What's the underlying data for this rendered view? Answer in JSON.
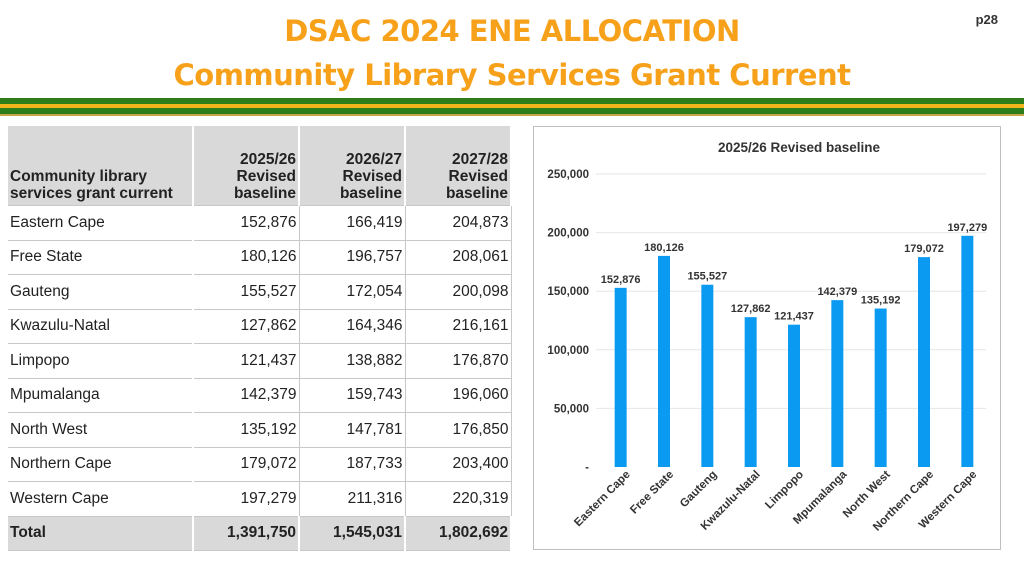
{
  "header": {
    "title_line1": "DSAC 2024 ENE ALLOCATION",
    "title_line2": "Community Library Services Grant Current",
    "page": "p28"
  },
  "table": {
    "columns": [
      "Community library services grant current",
      "2025/26 Revised baseline",
      "2026/27 Revised baseline",
      "2027/28 Revised baseline"
    ],
    "rows": [
      [
        "Eastern Cape",
        "152,876",
        "166,419",
        "204,873"
      ],
      [
        "Free State",
        "180,126",
        "196,757",
        "208,061"
      ],
      [
        "Gauteng",
        "155,527",
        "172,054",
        "200,098"
      ],
      [
        "Kwazulu-Natal",
        "127,862",
        "164,346",
        "216,161"
      ],
      [
        "Limpopo",
        "121,437",
        "138,882",
        "176,870"
      ],
      [
        "Mpumalanga",
        "142,379",
        "159,743",
        "196,060"
      ],
      [
        "North West",
        "135,192",
        "147,781",
        "176,850"
      ],
      [
        "Northern Cape",
        "179,072",
        "187,733",
        "203,400"
      ],
      [
        "Western Cape",
        "197,279",
        "211,316",
        "220,319"
      ]
    ],
    "total": [
      "Total",
      "1,391,750",
      "1,545,031",
      "1,802,692"
    ]
  },
  "chart_data": {
    "type": "bar",
    "title": "2025/26 Revised baseline",
    "categories": [
      "Eastern Cape",
      "Free State",
      "Gauteng",
      "Kwazulu-Natal",
      "Limpopo",
      "Mpumalanga",
      "North West",
      "Northern Cape",
      "Western Cape"
    ],
    "values": [
      152876,
      180126,
      155527,
      127862,
      121437,
      142379,
      135192,
      179072,
      197279
    ],
    "data_labels": [
      "152,876",
      "180,126",
      "155,527",
      "127,862",
      "121,437",
      "142,379",
      "135,192",
      "179,072",
      "197,279"
    ],
    "yticks": [
      "-",
      "50,000",
      "100,000",
      "150,000",
      "200,000",
      "250,000"
    ],
    "ylim": [
      0,
      250000
    ],
    "color": "#0b9af2",
    "grid": true,
    "legend": "none"
  }
}
